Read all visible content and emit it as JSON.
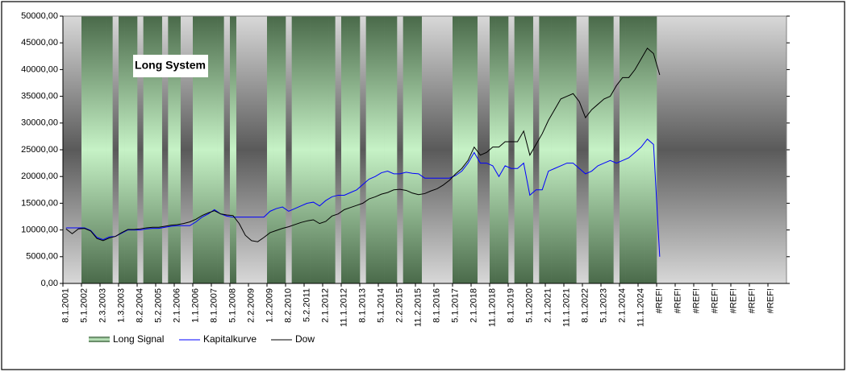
{
  "chart_data": {
    "type": "combo",
    "title": "Long System",
    "categories": [
      "8.1.2001",
      null,
      null,
      "5.1.2002",
      null,
      null,
      "2.3.2003",
      null,
      null,
      "1.3.2003",
      null,
      null,
      "8.2.2004",
      null,
      null,
      "5.2.2005",
      null,
      null,
      "2.1.2006",
      null,
      null,
      "1.1.2006",
      null,
      null,
      "8.1.2007",
      null,
      null,
      "5.1.2008",
      null,
      null,
      "2.2.2009",
      null,
      null,
      "1.2.2009",
      null,
      null,
      "8.2.2010",
      null,
      null,
      "5.2.2011",
      null,
      null,
      "2.1.2012",
      null,
      null,
      "11.1.2012",
      null,
      null,
      "8.1.2013",
      null,
      null,
      "5.1.2014",
      null,
      null,
      "2.2.2015",
      null,
      null,
      "11.2.2015",
      null,
      null,
      "8.1.2016",
      null,
      null,
      "5.1.2017",
      null,
      null,
      "2.1.2018",
      null,
      null,
      "11.1.2018",
      null,
      null,
      "8.1.2019",
      null,
      null,
      "5.1.2020",
      null,
      null,
      "2.1.2021",
      null,
      null,
      "11.1.2021",
      null,
      null,
      "8.1.2022",
      null,
      null,
      "5.1.2023",
      null,
      null,
      "2.1.2024",
      null,
      null,
      "11.1.2024",
      null,
      null,
      "#REF!",
      null,
      null,
      "#REF!",
      null,
      null,
      "#REF!",
      null,
      null,
      "#REF!",
      null,
      null,
      "#REF!",
      null,
      null,
      "#REF!",
      null,
      null,
      "#REF!",
      null,
      null
    ],
    "series": [
      {
        "name": "Long Signal",
        "type": "bar",
        "color": "#c6f2c6",
        "values": [
          0,
          0,
          0,
          50000,
          50000,
          50000,
          50000,
          50000,
          0,
          50000,
          50000,
          50000,
          0,
          50000,
          50000,
          50000,
          0,
          50000,
          50000,
          0,
          0,
          50000,
          50000,
          50000,
          50000,
          50000,
          0,
          50000,
          0,
          0,
          0,
          0,
          0,
          50000,
          50000,
          50000,
          0,
          50000,
          50000,
          50000,
          50000,
          50000,
          50000,
          50000,
          0,
          50000,
          50000,
          50000,
          0,
          50000,
          50000,
          50000,
          50000,
          50000,
          0,
          50000,
          50000,
          50000,
          0,
          0,
          0,
          0,
          0,
          50000,
          50000,
          50000,
          50000,
          0,
          0,
          50000,
          50000,
          50000,
          0,
          50000,
          50000,
          50000,
          0,
          50000,
          50000,
          50000,
          50000,
          50000,
          50000,
          0,
          0,
          50000,
          50000,
          50000,
          50000,
          0,
          50000,
          50000,
          50000,
          50000,
          50000,
          50000,
          0,
          0,
          0,
          0,
          0,
          0,
          0,
          0,
          0,
          0,
          0,
          0,
          0,
          0,
          0,
          0,
          0,
          0,
          0,
          0,
          0
        ]
      },
      {
        "name": "Kapitalkurve",
        "type": "line",
        "color": "#0000ff",
        "values": [
          10400,
          10400,
          10400,
          10400,
          9900,
          8600,
          8200,
          8700,
          8800,
          9400,
          10000,
          10000,
          10000,
          10200,
          10300,
          10300,
          10500,
          10700,
          10800,
          10800,
          10800,
          11500,
          12400,
          13000,
          13800,
          13000,
          12600,
          12400,
          12400,
          12400,
          12400,
          12400,
          12400,
          13500,
          14000,
          14300,
          13500,
          14000,
          14500,
          15000,
          15200,
          14500,
          15500,
          16200,
          16500,
          16500,
          17000,
          17500,
          18500,
          19500,
          20000,
          20700,
          21000,
          20500,
          20500,
          20800,
          20600,
          20500,
          19700,
          19700,
          19700,
          19700,
          19700,
          20200,
          21000,
          22500,
          24500,
          22500,
          22500,
          22000,
          20000,
          22000,
          21500,
          21500,
          22500,
          16500,
          17500,
          17500,
          21000,
          21500,
          22000,
          22500,
          22500,
          21500,
          20500,
          21000,
          22000,
          22500,
          23000,
          22500,
          23000,
          23500,
          24500,
          25500,
          27000,
          26000,
          5000,
          null,
          null,
          null,
          null,
          null,
          null,
          null,
          null,
          null,
          null,
          null,
          null,
          null,
          null,
          null,
          null,
          null,
          null,
          null,
          null
        ]
      },
      {
        "name": "Dow",
        "type": "line",
        "color": "#000000",
        "values": [
          10200,
          9300,
          10200,
          10300,
          9800,
          8400,
          8000,
          8500,
          8800,
          9500,
          10100,
          10100,
          10200,
          10400,
          10500,
          10500,
          10700,
          10900,
          11000,
          11200,
          11500,
          12000,
          12700,
          13200,
          13600,
          13000,
          12800,
          12700,
          11200,
          9000,
          8000,
          7800,
          8600,
          9500,
          9900,
          10300,
          10600,
          11000,
          11400,
          11700,
          11900,
          11200,
          11600,
          12600,
          13000,
          13800,
          14200,
          14600,
          15000,
          15800,
          16200,
          16700,
          17000,
          17500,
          17600,
          17400,
          16900,
          16600,
          16800,
          17300,
          17700,
          18400,
          19300,
          20500,
          21500,
          23000,
          25500,
          24000,
          24500,
          25500,
          25500,
          26500,
          26500,
          26500,
          28500,
          24000,
          26000,
          28000,
          30500,
          32500,
          34500,
          35000,
          35500,
          34000,
          31000,
          32500,
          33500,
          34500,
          35000,
          37000,
          38500,
          38500,
          40000,
          42000,
          44000,
          43000,
          39000,
          null,
          null,
          null,
          null,
          null,
          null,
          null,
          null,
          null,
          null,
          null,
          null,
          null,
          null,
          null,
          null,
          null,
          null,
          null,
          null
        ]
      }
    ],
    "ylim": [
      0,
      50000
    ],
    "yticks": [
      {
        "value": 0,
        "label": "0,00"
      },
      {
        "value": 5000,
        "label": "5000,00"
      },
      {
        "value": 10000,
        "label": "10000,00"
      },
      {
        "value": 15000,
        "label": "15000,00"
      },
      {
        "value": 20000,
        "label": "20000,00"
      },
      {
        "value": 25000,
        "label": "25000,00"
      },
      {
        "value": 30000,
        "label": "30000,00"
      },
      {
        "value": 35000,
        "label": "35000,00"
      },
      {
        "value": 40000,
        "label": "40000,00"
      },
      {
        "value": 45000,
        "label": "45000,00"
      },
      {
        "value": 50000,
        "label": "50000,00"
      }
    ],
    "grid": false,
    "legend": "bottom"
  }
}
